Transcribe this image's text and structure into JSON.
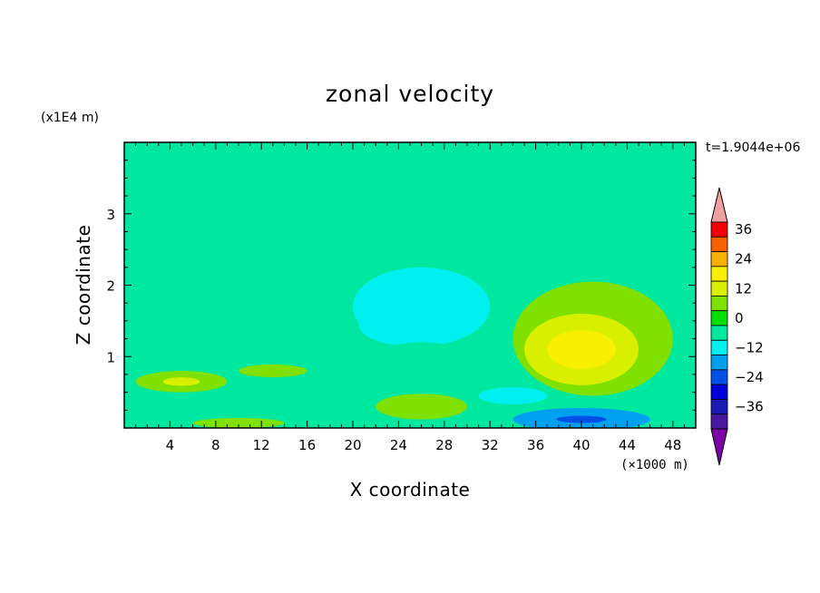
{
  "chart_data": {
    "type": "heatmap",
    "title": "zonal velocity",
    "xlabel": "X coordinate",
    "ylabel": "Z coordinate",
    "x_unit": "(×1000 m)",
    "y_unit": "(x1E4 m)",
    "time_label": "t=1.9044e+06",
    "xlim": [
      0,
      50
    ],
    "ylim": [
      0,
      4
    ],
    "x_ticks": [
      4,
      8,
      12,
      16,
      20,
      24,
      28,
      32,
      36,
      40,
      44,
      48
    ],
    "x_tick_labels": [
      "4",
      "8",
      "12",
      "16",
      "20",
      "24",
      "28",
      "32",
      "36",
      "40",
      "44",
      "48"
    ],
    "y_ticks": [
      1,
      2,
      3
    ],
    "y_tick_labels": [
      "1",
      "2",
      "3"
    ],
    "colorbar": {
      "levels": [
        -42,
        -36,
        -30,
        -24,
        -18,
        -12,
        -6,
        0,
        6,
        12,
        18,
        24,
        30,
        36,
        42
      ],
      "colors": [
        "#7b00a8",
        "#4a18a0",
        "#1a1ab4",
        "#0000d8",
        "#0050e8",
        "#00a0f0",
        "#00f0f0",
        "#00e8a0",
        "#00e000",
        "#80e000",
        "#d8f000",
        "#f8f000",
        "#f8b000",
        "#f86000",
        "#f00000",
        "#f0a0a0"
      ],
      "tick_values": [
        36,
        24,
        12,
        0,
        -12,
        -24,
        -36
      ],
      "tick_labels": [
        "36",
        "24",
        "12",
        "0",
        "−12",
        "−24",
        "−36"
      ]
    },
    "features": [
      {
        "x": 25,
        "z": 3.85,
        "value": -3,
        "rx": 30,
        "rz": 0.25
      },
      {
        "x": 25,
        "z": 3.15,
        "value": -3,
        "rx": 35,
        "rz": 0.3
      },
      {
        "x": 24,
        "z": 1.9,
        "value": -4,
        "rx": 10,
        "rz": 0.8
      },
      {
        "x": 26,
        "z": 1.7,
        "value": -8,
        "rx": 6,
        "rz": 0.55
      },
      {
        "x": 25,
        "z": 1.45,
        "value": -12,
        "rx": 4.5,
        "rz": 0.3
      },
      {
        "x": 26,
        "z": 0.85,
        "value": -5,
        "rx": 5,
        "rz": 0.35
      },
      {
        "x": 41,
        "z": 1.25,
        "value": 8,
        "rx": 7,
        "rz": 0.8
      },
      {
        "x": 40,
        "z": 1.1,
        "value": 14,
        "rx": 5,
        "rz": 0.5
      },
      {
        "x": 40,
        "z": 1.1,
        "value": 19,
        "rx": 3,
        "rz": 0.27
      },
      {
        "x": 40,
        "z": 0.12,
        "value": -15,
        "rx": 6,
        "rz": 0.16
      },
      {
        "x": 40,
        "z": 0.12,
        "value": -24,
        "rx": 2.2,
        "rz": 0.05
      },
      {
        "x": 34,
        "z": 0.45,
        "value": -7,
        "rx": 3,
        "rz": 0.12
      },
      {
        "x": 5,
        "z": 0.65,
        "value": 8,
        "rx": 4,
        "rz": 0.15
      },
      {
        "x": 5,
        "z": 0.65,
        "value": 13,
        "rx": 1.6,
        "rz": 0.06
      },
      {
        "x": 8,
        "z": 0.3,
        "value": -6,
        "rx": 8,
        "rz": 0.1
      },
      {
        "x": 26,
        "z": 0.3,
        "value": 10,
        "rx": 4,
        "rz": 0.18
      },
      {
        "x": 13,
        "z": 0.8,
        "value": 6,
        "rx": 3,
        "rz": 0.09
      },
      {
        "x": 10,
        "z": 0.07,
        "value": 8,
        "rx": 4,
        "rz": 0.07
      },
      {
        "x": 2,
        "z": 1.2,
        "value": -3,
        "rx": 3,
        "rz": 0.1
      }
    ]
  }
}
